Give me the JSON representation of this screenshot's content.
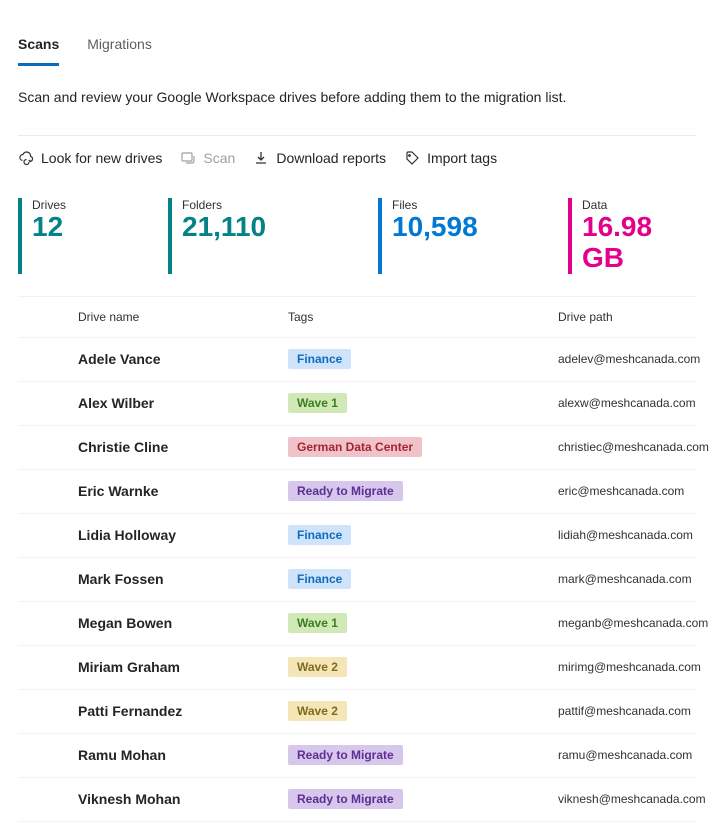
{
  "tabs": {
    "items": [
      {
        "label": "Scans",
        "active": true
      },
      {
        "label": "Migrations",
        "active": false
      }
    ]
  },
  "description": "Scan and review your Google Workspace drives before adding them to the migration list.",
  "toolbar": {
    "look": "Look for new drives",
    "scan": "Scan",
    "download": "Download reports",
    "import": "Import tags"
  },
  "stats": {
    "drives": {
      "label": "Drives",
      "value": "12"
    },
    "folders": {
      "label": "Folders",
      "value": "21,110"
    },
    "files": {
      "label": "Files",
      "value": "10,598"
    },
    "data": {
      "label": "Data",
      "value": "16.98 GB"
    }
  },
  "columns": {
    "name": "Drive name",
    "tags": "Tags",
    "path": "Drive path"
  },
  "tag_styles": {
    "Finance": {
      "bg": "#cfe4fa",
      "fg": "#0f6cbd"
    },
    "Wave 1": {
      "bg": "#d1e8b7",
      "fg": "#3b7e1f"
    },
    "German Data Center": {
      "bg": "#f0c3ca",
      "fg": "#a4262c"
    },
    "Ready to Migrate": {
      "bg": "#d7c7ec",
      "fg": "#5c2e91"
    },
    "Wave 2": {
      "bg": "#f4e6b6",
      "fg": "#7f6a1f"
    }
  },
  "rows": [
    {
      "name": "Adele Vance",
      "tag": "Finance",
      "path": "adelev@meshcanada.com"
    },
    {
      "name": "Alex Wilber",
      "tag": "Wave 1",
      "path": "alexw@meshcanada.com"
    },
    {
      "name": "Christie Cline",
      "tag": "German Data Center",
      "path": "christiec@meshcanada.com"
    },
    {
      "name": "Eric Warnke",
      "tag": "Ready to Migrate",
      "path": "eric@meshcanada.com"
    },
    {
      "name": "Lidia Holloway",
      "tag": "Finance",
      "path": "lidiah@meshcanada.com"
    },
    {
      "name": "Mark Fossen",
      "tag": "Finance",
      "path": "mark@meshcanada.com"
    },
    {
      "name": "Megan Bowen",
      "tag": "Wave 1",
      "path": "meganb@meshcanada.com"
    },
    {
      "name": "Miriam Graham",
      "tag": "Wave 2",
      "path": "mirimg@meshcanada.com"
    },
    {
      "name": "Patti Fernandez",
      "tag": "Wave 2",
      "path": "pattif@meshcanada.com"
    },
    {
      "name": "Ramu Mohan",
      "tag": "Ready to Migrate",
      "path": "ramu@meshcanada.com"
    },
    {
      "name": "Viknesh Mohan",
      "tag": "Ready to Migrate",
      "path": "viknesh@meshcanada.com"
    }
  ]
}
